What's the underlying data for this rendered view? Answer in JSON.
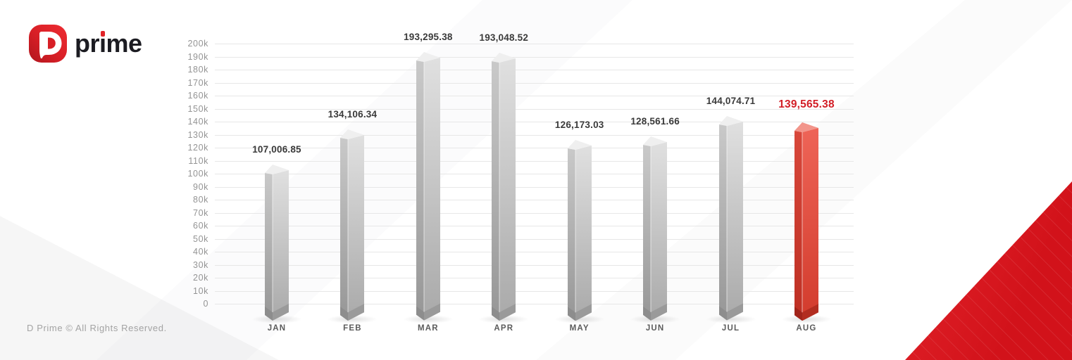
{
  "logo": {
    "brand": "prime",
    "brand_render_parts": [
      "pr",
      "ı",
      "me"
    ],
    "icon": "d-prime-logo"
  },
  "footer": {
    "copyright": "D Prime © All Rights Reserved."
  },
  "chart_data": {
    "type": "bar",
    "title": "",
    "xlabel": "",
    "ylabel": "",
    "categories": [
      "JAN",
      "FEB",
      "MAR",
      "APR",
      "MAY",
      "JUN",
      "JUL",
      "AUG"
    ],
    "values": [
      107006.85,
      134106.34,
      193295.38,
      193048.52,
      126173.03,
      128561.66,
      144074.71,
      139565.38
    ],
    "value_labels": [
      "107,006.85",
      "134,106.34",
      "193,295.38",
      "193,048.52",
      "126,173.03",
      "128,561.66",
      "144,074.71",
      "139,565.38"
    ],
    "highlight_index": 7,
    "ylim": [
      0,
      200000
    ],
    "ytick_labels": [
      "200k",
      "190k",
      "180k",
      "170k",
      "160k",
      "150k",
      "140k",
      "130k",
      "120k",
      "110k",
      "100k",
      "90k",
      "80k",
      "70k",
      "60k",
      "50k",
      "40k",
      "30k",
      "20k",
      "10k",
      "0"
    ],
    "grid": true,
    "legend_position": "none"
  },
  "colors": {
    "accent_red": "#d92027",
    "logo_red": "#e02328",
    "logo_text": "#1c1c22",
    "bar_gray_side_top": "#c9c9c9",
    "bar_gray_side_bottom": "#969696",
    "bar_gray_front_top": "#e0e0e0",
    "bar_gray_front_bottom": "#a9a9a9",
    "bar_gray_topface": "#efefef",
    "bar_gray_foot_left": "#8d8d8d",
    "bar_gray_foot_right": "#9a9a9a",
    "bar_red_side_top": "#d8473a",
    "bar_red_side_bottom": "#bd2f23",
    "bar_red_front_top": "#ee6457",
    "bar_red_front_bottom": "#d23b2c",
    "bar_red_topface": "#f2958b",
    "bar_red_foot_left": "#a1241a",
    "bar_red_foot_right": "#b22d20",
    "value_label": "#3a3a3a",
    "value_label_highlight": "#d21e26",
    "grid_line": "#e7e7e7",
    "tick_label": "#949494",
    "month_label": "#5b5b5b",
    "corner_triangle": "#d8151c",
    "footer_text": "#a3a3a3"
  }
}
